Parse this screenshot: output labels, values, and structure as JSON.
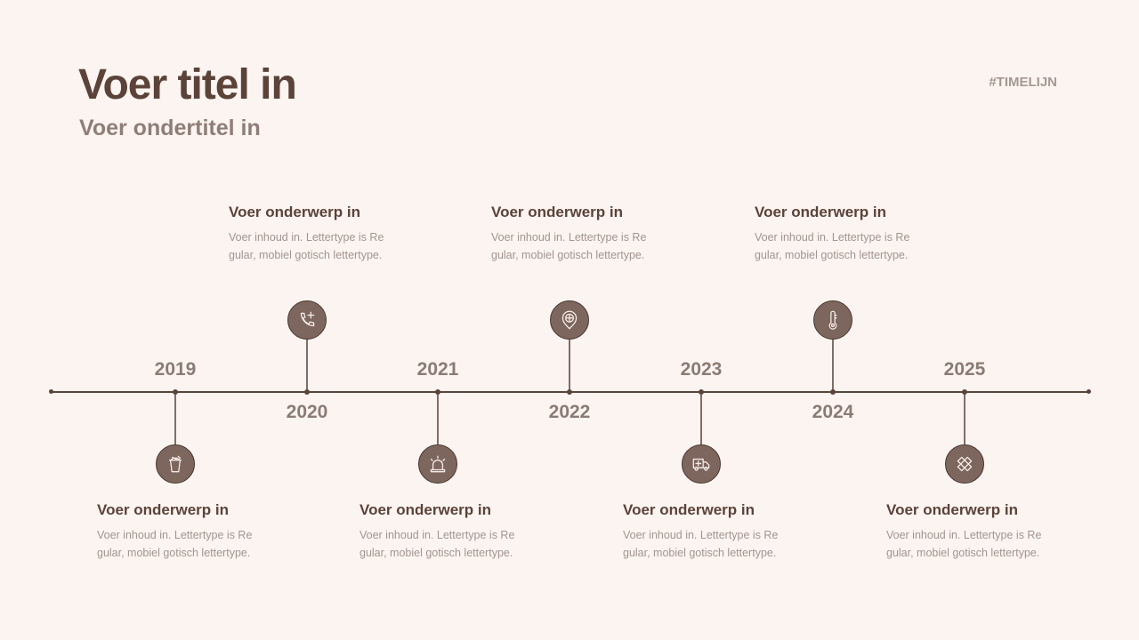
{
  "header": {
    "title": "Voer titel in",
    "subtitle": "Voer ondertitel in",
    "tag": "#TIMELIJN"
  },
  "colors": {
    "background": "#fcf4f0",
    "primary": "#5b433a",
    "icon_fill": "#7c665e",
    "muted": "#8f7e77"
  },
  "events": [
    {
      "year": "2019",
      "position": "below",
      "icon": "takeaway-cup-icon",
      "heading": "Voer onderwerp in",
      "body": "Voer inhoud in. Lettertype is Regular, mobiel gotisch lettertype."
    },
    {
      "year": "2020",
      "position": "above",
      "icon": "phone-plus-icon",
      "heading": "Voer onderwerp in",
      "body": "Voer inhoud in. Lettertype is Regular, mobiel gotisch lettertype."
    },
    {
      "year": "2021",
      "position": "below",
      "icon": "alarm-siren-icon",
      "heading": "Voer onderwerp in",
      "body": "Voer inhoud in. Lettertype is Regular, mobiel gotisch lettertype."
    },
    {
      "year": "2022",
      "position": "above",
      "icon": "location-pin-plus-icon",
      "heading": "Voer onderwerp in",
      "body": "Voer inhoud in. Lettertype is Regular, mobiel gotisch lettertype."
    },
    {
      "year": "2023",
      "position": "below",
      "icon": "ambulance-icon",
      "heading": "Voer onderwerp in",
      "body": "Voer inhoud in. Lettertype is Regular, mobiel gotisch lettertype."
    },
    {
      "year": "2024",
      "position": "above",
      "icon": "thermometer-icon",
      "heading": "Voer onderwerp in",
      "body": "Voer inhoud in. Lettertype is Regular, mobiel gotisch lettertype."
    },
    {
      "year": "2025",
      "position": "below",
      "icon": "bandage-icon",
      "heading": "Voer onderwerp in",
      "body": "Voer inhoud in. Lettertype is Regular, mobiel gotisch lettertype."
    }
  ]
}
